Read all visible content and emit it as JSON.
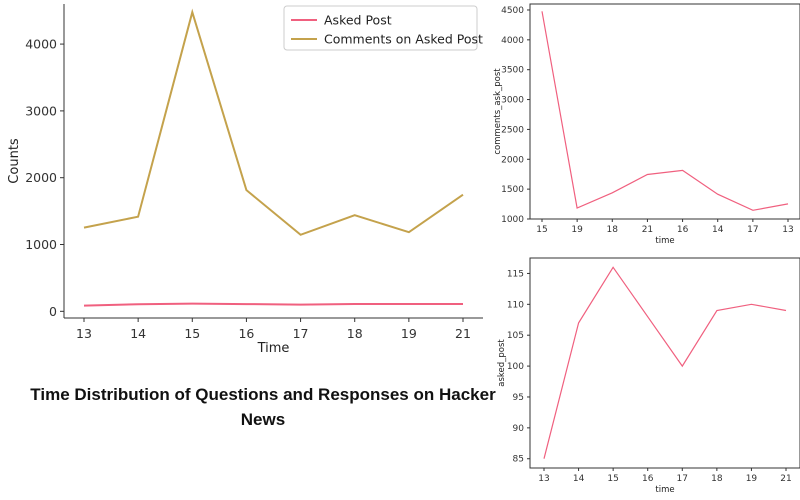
{
  "caption": "Time Distribution of Questions and Responses on Hacker News",
  "colors": {
    "asked": "#f0607f",
    "comments": "#c4a24c",
    "axis": "#333333"
  },
  "chart_data": [
    {
      "type": "line",
      "categories": [
        "13",
        "14",
        "15",
        "16",
        "17",
        "18",
        "19",
        "21"
      ],
      "series": [
        {
          "name": "Asked Post",
          "values": [
            85,
            107,
            116,
            108,
            100,
            109,
            110,
            109
          ]
        },
        {
          "name": "Comments on Asked Post",
          "values": [
            1253,
            1416,
            4477,
            1814,
            1146,
            1439,
            1184,
            1745
          ]
        }
      ],
      "xlabel": "Time",
      "ylabel": "Counts",
      "ylim": [
        -100,
        4600
      ],
      "yticks": [
        0,
        1000,
        2000,
        3000,
        4000
      ],
      "legend": "top-right",
      "grid": false
    },
    {
      "type": "line",
      "categories": [
        "15",
        "19",
        "18",
        "21",
        "16",
        "14",
        "17",
        "13"
      ],
      "series": [
        {
          "name": "",
          "values": [
            4477,
            1184,
            1439,
            1745,
            1814,
            1416,
            1146,
            1253
          ]
        }
      ],
      "xlabel": "time",
      "ylabel": "comments_ask_post",
      "ylim": [
        1000,
        4600
      ],
      "yticks": [
        1000,
        1500,
        2000,
        2500,
        3000,
        3500,
        4000,
        4500
      ],
      "grid": false
    },
    {
      "type": "line",
      "categories": [
        "13",
        "14",
        "15",
        "16",
        "17",
        "18",
        "19",
        "21"
      ],
      "series": [
        {
          "name": "",
          "values": [
            85,
            107,
            116,
            108,
            100,
            109,
            110,
            109
          ]
        }
      ],
      "xlabel": "time",
      "ylabel": "asked_post",
      "ylim": [
        83.5,
        117.5
      ],
      "yticks": [
        85,
        90,
        95,
        100,
        105,
        110,
        115
      ],
      "grid": false
    }
  ]
}
